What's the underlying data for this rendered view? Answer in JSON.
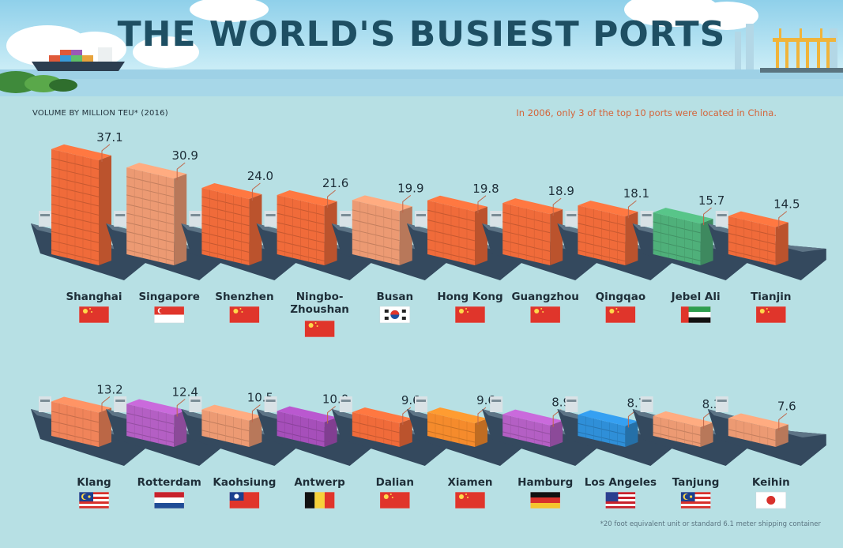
{
  "header": {
    "title": "THE WORLD'S BUSIEST PORTS",
    "unit_label": "VOLUME BY MILLION TEU* (2016)",
    "note": "In 2006, only 3 of the top 10 ports were located in China."
  },
  "footnote": "*20 foot equivalent unit or standard 6.1 meter shipping container",
  "colors": {
    "background": "#b7e0e4",
    "hull": "#34495e",
    "container_default": "#f06b3a",
    "title": "#1e4f63",
    "note": "#d4643a"
  },
  "chart_data": {
    "type": "bar",
    "title": "THE WORLD'S BUSIEST PORTS",
    "ylabel": "VOLUME BY MILLION TEU* (2016)",
    "categories": [
      "Shanghai",
      "Singapore",
      "Shenzhen",
      "Ningbo-Zhoushan",
      "Busan",
      "Hong Kong",
      "Guangzhou",
      "Qingqao",
      "Jebel Ali",
      "Tianjin",
      "Klang",
      "Rotterdam",
      "Kaohsiung",
      "Antwerp",
      "Dalian",
      "Xiamen",
      "Hamburg",
      "Los Angeles",
      "Tanjung",
      "Keihin"
    ],
    "values": [
      37.1,
      30.9,
      24.0,
      21.6,
      19.9,
      19.8,
      18.9,
      18.1,
      15.7,
      14.5,
      13.2,
      12.4,
      10.5,
      10.0,
      9.6,
      9.6,
      8.9,
      8.7,
      8.3,
      7.6
    ],
    "value_labels": [
      "37.1",
      "30.9",
      "24.0",
      "21.6",
      "19.9",
      "19.8",
      "18.9",
      "18.1",
      "15.7",
      "14.5",
      "13.2",
      "12.4",
      "10.5",
      "10.0",
      "9.6",
      "9.6",
      "8.9",
      "8.7",
      "8.3",
      "7.6"
    ],
    "label_lines": [
      [
        "Shanghai"
      ],
      [
        "Singapore"
      ],
      [
        "Shenzhen"
      ],
      [
        "Ningbo-",
        "Zhoushan"
      ],
      [
        "Busan"
      ],
      [
        "Hong Kong"
      ],
      [
        "Guangzhou"
      ],
      [
        "Qingqao"
      ],
      [
        "Jebel Ali"
      ],
      [
        "Tianjin"
      ],
      [
        "Klang"
      ],
      [
        "Rotterdam"
      ],
      [
        "Kaohsiung"
      ],
      [
        "Antwerp"
      ],
      [
        "Dalian"
      ],
      [
        "Xiamen"
      ],
      [
        "Hamburg"
      ],
      [
        "Los Angeles"
      ],
      [
        "Tanjung"
      ],
      [
        "Keihin"
      ]
    ],
    "flags": [
      "china-flag",
      "singapore-flag",
      "china-flag",
      "china-flag",
      "south-korea-flag",
      "china-flag",
      "china-flag",
      "china-flag",
      "uae-flag",
      "china-flag",
      "malaysia-flag",
      "netherlands-flag",
      "taiwan-flag",
      "belgium-flag",
      "china-flag",
      "china-flag",
      "germany-flag",
      "usa-flag",
      "malaysia-flag",
      "japan-flag"
    ],
    "container_colors": [
      "#f06b3a",
      "#ec9a73",
      "#f06b3a",
      "#f06b3a",
      "#ec9a73",
      "#f06b3a",
      "#f06b3a",
      "#f06b3a",
      "#4fb07a",
      "#f06b3a",
      "#f0845a",
      "#b45fc4",
      "#ec9a73",
      "#a64fba",
      "#f06b3a",
      "#f58b2c",
      "#b45fc4",
      "#2f8fd8",
      "#ec9a73",
      "#ec9a73"
    ]
  }
}
